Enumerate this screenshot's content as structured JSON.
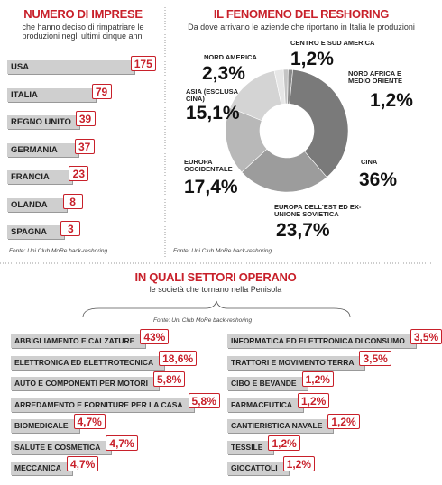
{
  "chart_data": [
    {
      "type": "bar",
      "title": "NUMERO DI IMPRESE",
      "subtitle": "che hanno deciso di rimpatriare le produzioni negli ultimi cinque anni",
      "categories": [
        "USA",
        "ITALIA",
        "REGNO UNITO",
        "GERMANIA",
        "FRANCIA",
        "OLANDA",
        "SPAGNA"
      ],
      "values": [
        175,
        79,
        39,
        37,
        23,
        8,
        3
      ],
      "color": "#cfcfcf",
      "source": "Fonte: Uni Club MoRe back-reshoring"
    },
    {
      "type": "pie",
      "title": "IL FENOMENO DEL RESHORING",
      "subtitle": "Da dove arrivano le aziende che riportano in Italia le produzioni",
      "categories": [
        "NORD AFRICA E MEDIO ORIENTE",
        "CINA",
        "EUROPA DELL'EST ED EX-UNIONE SOVIETICA",
        "EUROPA OCCIDENTALE",
        "ASIA (ESCLUSA CINA)",
        "NORD AMERICA",
        "CENTRO E SUD AMERICA"
      ],
      "values": [
        1.2,
        36,
        23.7,
        17.4,
        15.1,
        2.3,
        1.2
      ],
      "value_labels": [
        "1,2%",
        "36%",
        "23,7%",
        "17,4%",
        "15,1%",
        "2,3%",
        "1,2%"
      ],
      "colors": [
        "#8a8a8a",
        "#7a7a7a",
        "#9c9c9c",
        "#b8b8b8",
        "#d4d4d4",
        "#e6e6e6",
        "#c4c4c4"
      ],
      "source": "Fonte: Uni Club MoRe back-reshoring"
    },
    {
      "type": "bar",
      "title": "IN QUALI SETTORI OPERANO",
      "subtitle": "le società che tornano nella Penisola",
      "source": "Fonte: Uni Club MoRe back-reshoring",
      "categories": [
        "ABBIGLIAMENTO E CALZATURE",
        "ELETTRONICA ED ELETTROTECNICA",
        "AUTO E COMPONENTI PER MOTORI",
        "ARREDAMENTO E FORNITURE PER LA CASA",
        "BIOMEDICALE",
        "SALUTE E COSMETICA",
        "MECCANICA",
        "INFORMATICA ED ELETTRONICA DI CONSUMO",
        "TRATTORI E MOVIMENTO TERRA",
        "CIBO E BEVANDE",
        "FARMACEUTICA",
        "CANTIERISTICA NAVALE",
        "TESSILE",
        "GIOCATTOLI"
      ],
      "values": [
        43,
        18.6,
        5.8,
        5.8,
        4.7,
        4.7,
        4.7,
        3.5,
        3.5,
        1.2,
        1.2,
        1.2,
        1.2,
        1.2
      ],
      "value_labels": [
        "43%",
        "18,6%",
        "5,8%",
        "5,8%",
        "4,7%",
        "4,7%",
        "4,7%",
        "3,5%",
        "3,5%",
        "1,2%",
        "1,2%",
        "1,2%",
        "1,2%",
        "1,2%"
      ],
      "color": "#cfcfcf"
    }
  ]
}
